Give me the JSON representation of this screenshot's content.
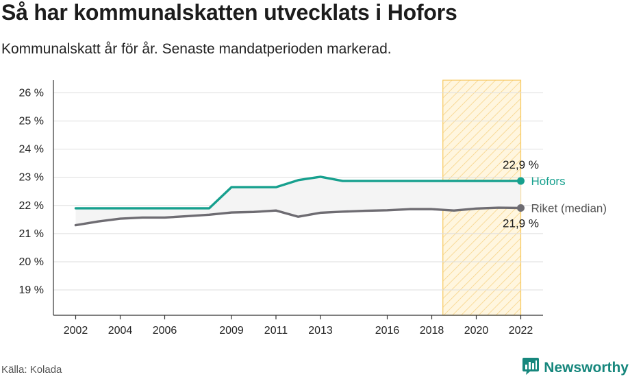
{
  "header": {
    "title": "Så har kommunalskatten utvecklats i Hofors",
    "subtitle": "Kommunalskatt år för år. Senaste mandatperioden markerad."
  },
  "footer": {
    "source": "Källa: Kolada",
    "brand": "Newsworthy",
    "brand_icon": "newsworthy-logo-icon"
  },
  "colors": {
    "hofors": "#17a08e",
    "riket": "#6e6c72",
    "period_fill": "#fff6df",
    "period_stroke": "#f7c95e",
    "band_fill": "#f4f4f4",
    "grid": "#dddddd",
    "axis": "#333333",
    "brand": "#17877d"
  },
  "chart_data": {
    "type": "line",
    "x": [
      2002,
      2003,
      2004,
      2005,
      2006,
      2007,
      2008,
      2009,
      2010,
      2011,
      2012,
      2013,
      2014,
      2015,
      2016,
      2017,
      2018,
      2019,
      2020,
      2021,
      2022
    ],
    "series": [
      {
        "name": "Hofors",
        "values": [
          21.9,
          21.9,
          21.9,
          21.9,
          21.9,
          21.9,
          21.9,
          22.65,
          22.65,
          22.65,
          22.9,
          23.02,
          22.87,
          22.87,
          22.87,
          22.87,
          22.87,
          22.87,
          22.87,
          22.87,
          22.87
        ]
      },
      {
        "name": "Riket (median)",
        "values": [
          21.3,
          21.43,
          21.53,
          21.57,
          21.57,
          21.62,
          21.67,
          21.75,
          21.77,
          21.82,
          21.6,
          21.74,
          21.78,
          21.81,
          21.83,
          21.87,
          21.87,
          21.82,
          21.89,
          21.92,
          21.91
        ]
      }
    ],
    "y_ticks": [
      "19 %",
      "20 %",
      "21 %",
      "22 %",
      "23 %",
      "24 %",
      "25 %",
      "26 %"
    ],
    "x_ticks": [
      "2002",
      "2004",
      "2006",
      "2009",
      "2011",
      "2013",
      "2016",
      "2018",
      "2020",
      "2022"
    ],
    "ylim": [
      18.1,
      26.45
    ],
    "xlim": [
      2001,
      2023
    ],
    "highlight_period": [
      2018.5,
      2022
    ],
    "end_labels": {
      "hofors_value": "22,9 %",
      "riket_value": "21,9 %"
    },
    "grid": true,
    "legend": "direct labels at line ends"
  }
}
